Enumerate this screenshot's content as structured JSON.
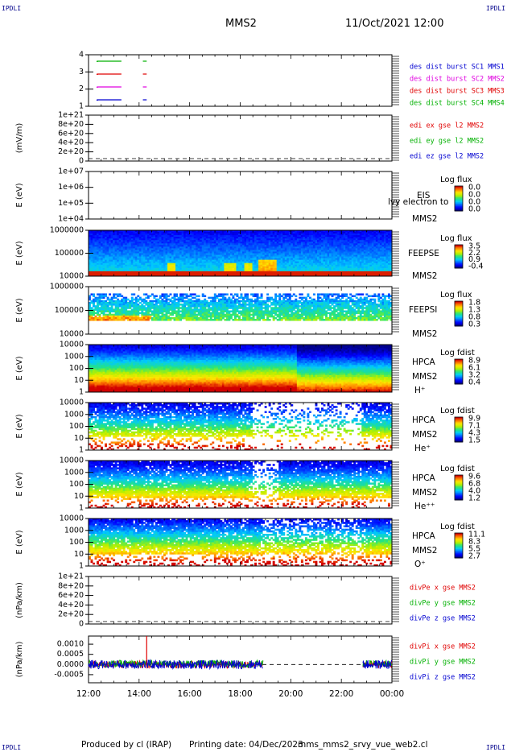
{
  "header": {
    "corner_label": "IPDLI",
    "spacecraft": "MMS2",
    "datetime": "11/Oct/2021 12:00"
  },
  "footer": {
    "produced_by": "Produced by cl (IRAP)",
    "printing_date": "Printing date: 04/Dec/2023",
    "filename": "mms_mms2_srvy_vue_web2.cl"
  },
  "colors": {
    "c1": "#00b000",
    "c2": "#e00000",
    "c3": "#e000e0",
    "c4": "#0000d0",
    "dash": "#000000"
  },
  "time_axis": {
    "ticks": [
      "12:00",
      "14:00",
      "16:00",
      "18:00",
      "20:00",
      "22:00",
      "00:00"
    ]
  },
  "chart_data": [
    {
      "type": "line",
      "name": "burst",
      "ylabel": "",
      "yticks": [
        "1",
        "2",
        "3",
        "4"
      ],
      "legend": [
        {
          "label": "des dist burst SC1 MMS1",
          "color": "#0000d0"
        },
        {
          "label": "des dist burst SC2 MMS2",
          "color": "#e000e0"
        },
        {
          "label": "des dist burst SC3 MMS3",
          "color": "#e00000"
        },
        {
          "label": "des dist burst SC4 MMS4",
          "color": "#00b000"
        }
      ],
      "series": [
        {
          "level": 4,
          "color": "#00b000",
          "segments": [
            [
              12.35,
              13.3
            ],
            [
              14.15,
              14.3
            ]
          ]
        },
        {
          "level": 3,
          "color": "#e00000",
          "segments": [
            [
              12.35,
              13.3
            ],
            [
              14.15,
              14.3
            ]
          ]
        },
        {
          "level": 2,
          "color": "#e000e0",
          "segments": [
            [
              12.35,
              13.3
            ],
            [
              14.15,
              14.3
            ]
          ]
        },
        {
          "level": 1,
          "color": "#0000d0",
          "segments": [
            [
              12.35,
              13.3
            ],
            [
              14.15,
              14.3
            ]
          ]
        }
      ]
    },
    {
      "type": "line",
      "name": "edi",
      "ylabel": "(mV/m)",
      "yticks": [
        "0",
        "2e+20",
        "4e+20",
        "6e+20",
        "8e+20",
        "1e+21"
      ],
      "legend": [
        {
          "label": "edi ex gse l2 MMS2",
          "color": "#e00000"
        },
        {
          "label": "edi ey gse l2 MMS2",
          "color": "#00b000"
        },
        {
          "label": "edi ez gse l2 MMS2",
          "color": "#0000d0"
        }
      ],
      "zero_line": true
    },
    {
      "type": "heatmap",
      "name": "eis",
      "ylabel": "E (eV)",
      "yticks": [
        "1e+04",
        "1e+05",
        "1e+06",
        "1e+07"
      ],
      "right_labels": [
        "EIS",
        "MMS2"
      ],
      "overlay_text": "lvy electron to",
      "cbar_title": "Log flux",
      "cbar_ticks": [
        "0.0",
        "0.0",
        "0.0",
        "0.0"
      ],
      "empty": true
    },
    {
      "type": "heatmap",
      "name": "feepse",
      "ylabel": "E (eV)",
      "yticks": [
        "10000",
        "100000",
        "1000000"
      ],
      "right_labels": [
        "FEEPSE",
        "MMS2"
      ],
      "cbar_title": "Log flux",
      "cbar_ticks": [
        "3.5",
        "2.2",
        "0.9",
        "-0.4"
      ]
    },
    {
      "type": "heatmap",
      "name": "feepsi",
      "ylabel": "E (eV)",
      "yticks": [
        "10000",
        "100000",
        "1000000"
      ],
      "right_labels": [
        "FEEPSI",
        "MMS2"
      ],
      "cbar_title": "Log flux",
      "cbar_ticks": [
        "1.8",
        "1.3",
        "0.8",
        "0.3"
      ]
    },
    {
      "type": "heatmap",
      "name": "hpca-h",
      "ylabel": "E (eV)",
      "yticks": [
        "1",
        "10",
        "100",
        "1000",
        "10000"
      ],
      "right_labels": [
        "HPCA",
        "MMS2",
        "H⁺"
      ],
      "cbar_title": "Log fdist",
      "cbar_ticks": [
        "8.9",
        "6.1",
        "3.2",
        "0.4"
      ]
    },
    {
      "type": "heatmap",
      "name": "hpca-he",
      "ylabel": "E (eV)",
      "yticks": [
        "1",
        "10",
        "100",
        "1000",
        "10000"
      ],
      "right_labels": [
        "HPCA",
        "MMS2",
        "He⁺"
      ],
      "cbar_title": "Log fdist",
      "cbar_ticks": [
        "9.9",
        "7.1",
        "4.3",
        "1.5"
      ]
    },
    {
      "type": "heatmap",
      "name": "hpca-hepp",
      "ylabel": "E (eV)",
      "yticks": [
        "1",
        "10",
        "100",
        "1000",
        "10000"
      ],
      "right_labels": [
        "HPCA",
        "MMS2",
        "He⁺⁺"
      ],
      "cbar_title": "Log fdist",
      "cbar_ticks": [
        "9.6",
        "6.8",
        "4.0",
        "1.2"
      ]
    },
    {
      "type": "heatmap",
      "name": "hpca-o",
      "ylabel": "E (eV)",
      "yticks": [
        "1",
        "10",
        "100",
        "1000",
        "10000"
      ],
      "right_labels": [
        "HPCA",
        "MMS2",
        "O⁺"
      ],
      "cbar_title": "Log fdist",
      "cbar_ticks": [
        "11.1",
        "8.3",
        "5.5",
        "2.7"
      ]
    },
    {
      "type": "line",
      "name": "divpe",
      "ylabel": "(nPa/km)",
      "yticks": [
        "0",
        "2e+20",
        "4e+20",
        "6e+20",
        "8e+20",
        "1e+21"
      ],
      "legend": [
        {
          "label": "divPe x gse MMS2",
          "color": "#e00000"
        },
        {
          "label": "divPe y gse MMS2",
          "color": "#00b000"
        },
        {
          "label": "divPe z gse MMS2",
          "color": "#0000d0"
        }
      ],
      "zero_line": true
    },
    {
      "type": "line",
      "name": "divpi",
      "ylabel": "(nPa/km)",
      "yticks": [
        "-0.0005",
        "0.0000",
        "0.0005",
        "0.0010"
      ],
      "ylim": [
        -0.0009,
        0.0014
      ],
      "legend": [
        {
          "label": "divPi x gse MMS2",
          "color": "#e00000"
        },
        {
          "label": "divPi y gse MMS2",
          "color": "#00b000"
        },
        {
          "label": "divPi z gse MMS2",
          "color": "#0000d0"
        }
      ],
      "zero_line": true,
      "data_ranges_hours": [
        [
          12.0,
          18.9
        ],
        [
          22.85,
          24.0
        ]
      ],
      "spike": {
        "x": 14.3,
        "y": 0.0014
      }
    }
  ]
}
